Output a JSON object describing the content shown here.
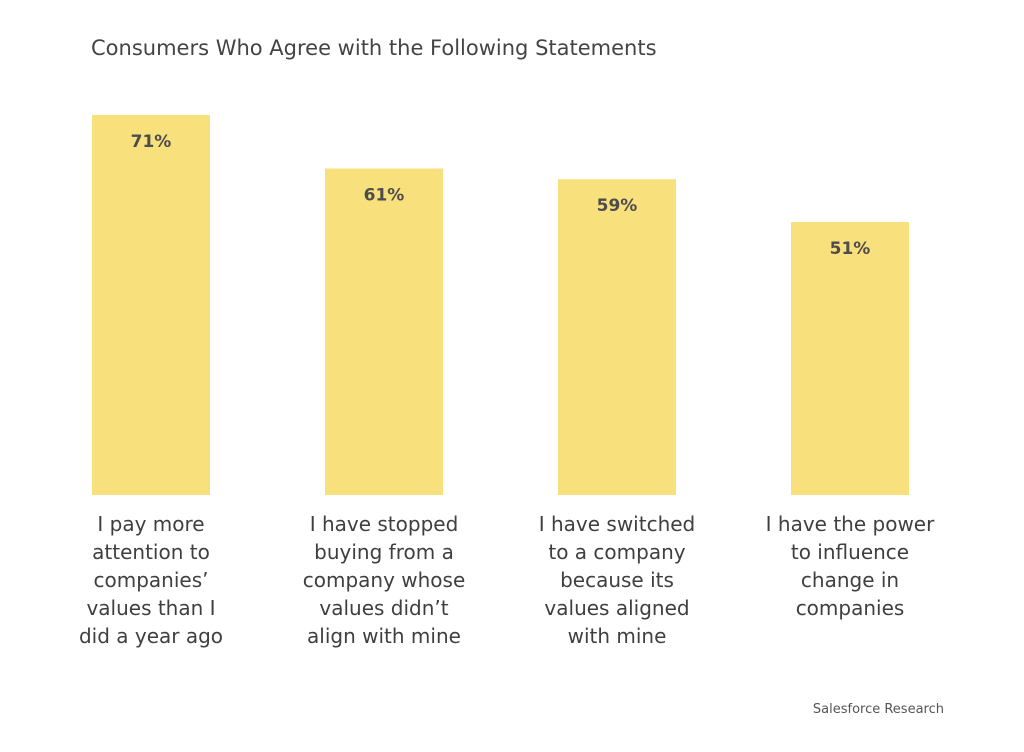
{
  "chart_data": {
    "type": "bar",
    "title": "Consumers Who Agree with the Following Statements",
    "categories": [
      "I pay more\nattention to\ncompanies’\nvalues than I\ndid a year ago",
      "I have stopped\nbuying from a\ncompany whose\nvalues didn’t\nalign with mine",
      "I have switched\nto a company\nbecause its\nvalues aligned\nwith mine",
      "I have the power\nto influence\nchange in\ncompanies"
    ],
    "values": [
      71,
      61,
      59,
      51
    ],
    "value_labels": [
      "71%",
      "61%",
      "59%",
      "51%"
    ],
    "xlabel": "",
    "ylabel": "",
    "ylim": [
      0,
      71
    ],
    "grid": false,
    "bar_color": "#f8e07d"
  },
  "footer": {
    "source": "Salesforce Research"
  }
}
